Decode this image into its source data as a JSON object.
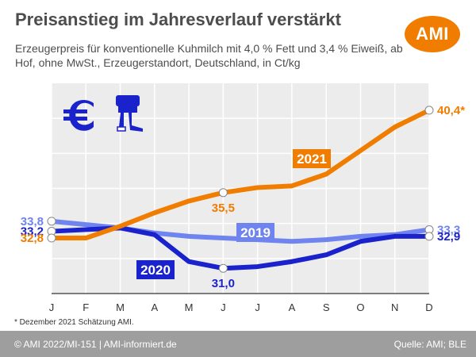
{
  "header": {
    "title": "Preisanstieg im Jahresverlauf verstärkt",
    "subtitle": "Erzeugerpreis für konventionelle Kuhmilch mit 4,0 % Fett und 3,4 % Eiweiß, ab Hof, ohne MwSt., Erzeugerstandort, Deutschland, in Ct/kg",
    "logo_text": "AMI"
  },
  "footnote": "* Dezember 2021 Schätzung AMI.",
  "footer": {
    "left": "© AMI 2022/MI-151 | AMI-informiert.de",
    "right": "Quelle: AMI; BLE"
  },
  "icons": [
    "euro-icon",
    "milking-machine-icon"
  ],
  "colors": {
    "2021": "#f07d00",
    "2020": "#1a22cc",
    "2019": "#6f84ee",
    "plot_bg": "#ececec",
    "footer_bg": "#9e9e9e"
  },
  "chart_data": {
    "type": "line",
    "categories": [
      "J",
      "F",
      "M",
      "A",
      "M",
      "J",
      "J",
      "A",
      "S",
      "O",
      "N",
      "D"
    ],
    "ylim": [
      29.5,
      42
    ],
    "grid": true,
    "series": [
      {
        "name": "2021",
        "values": [
          32.8,
          32.8,
          33.5,
          34.3,
          35.0,
          35.5,
          35.8,
          35.9,
          36.6,
          38.0,
          39.4,
          40.4
        ],
        "label_text": "2021",
        "point_labels": [
          {
            "index": 0,
            "text": "32,8",
            "side": "left"
          },
          {
            "index": 5,
            "text": "35,5",
            "side": "below"
          },
          {
            "index": 11,
            "text": "40,4*",
            "side": "right"
          }
        ]
      },
      {
        "name": "2020",
        "values": [
          33.2,
          33.3,
          33.4,
          33.0,
          31.4,
          31.0,
          31.1,
          31.4,
          31.8,
          32.6,
          32.9,
          32.9
        ],
        "label_text": "2020",
        "point_labels": [
          {
            "index": 0,
            "text": "33,2",
            "side": "left"
          },
          {
            "index": 5,
            "text": "31,0",
            "side": "below"
          },
          {
            "index": 11,
            "text": "32,9",
            "side": "right"
          }
        ]
      },
      {
        "name": "2019",
        "values": [
          33.8,
          33.6,
          33.4,
          33.1,
          32.9,
          32.8,
          32.7,
          32.6,
          32.7,
          32.9,
          33.0,
          33.3
        ],
        "label_text": "2019",
        "point_labels": [
          {
            "index": 0,
            "text": "33,8",
            "side": "left"
          },
          {
            "index": 11,
            "text": "33,3",
            "side": "right"
          }
        ]
      }
    ]
  }
}
